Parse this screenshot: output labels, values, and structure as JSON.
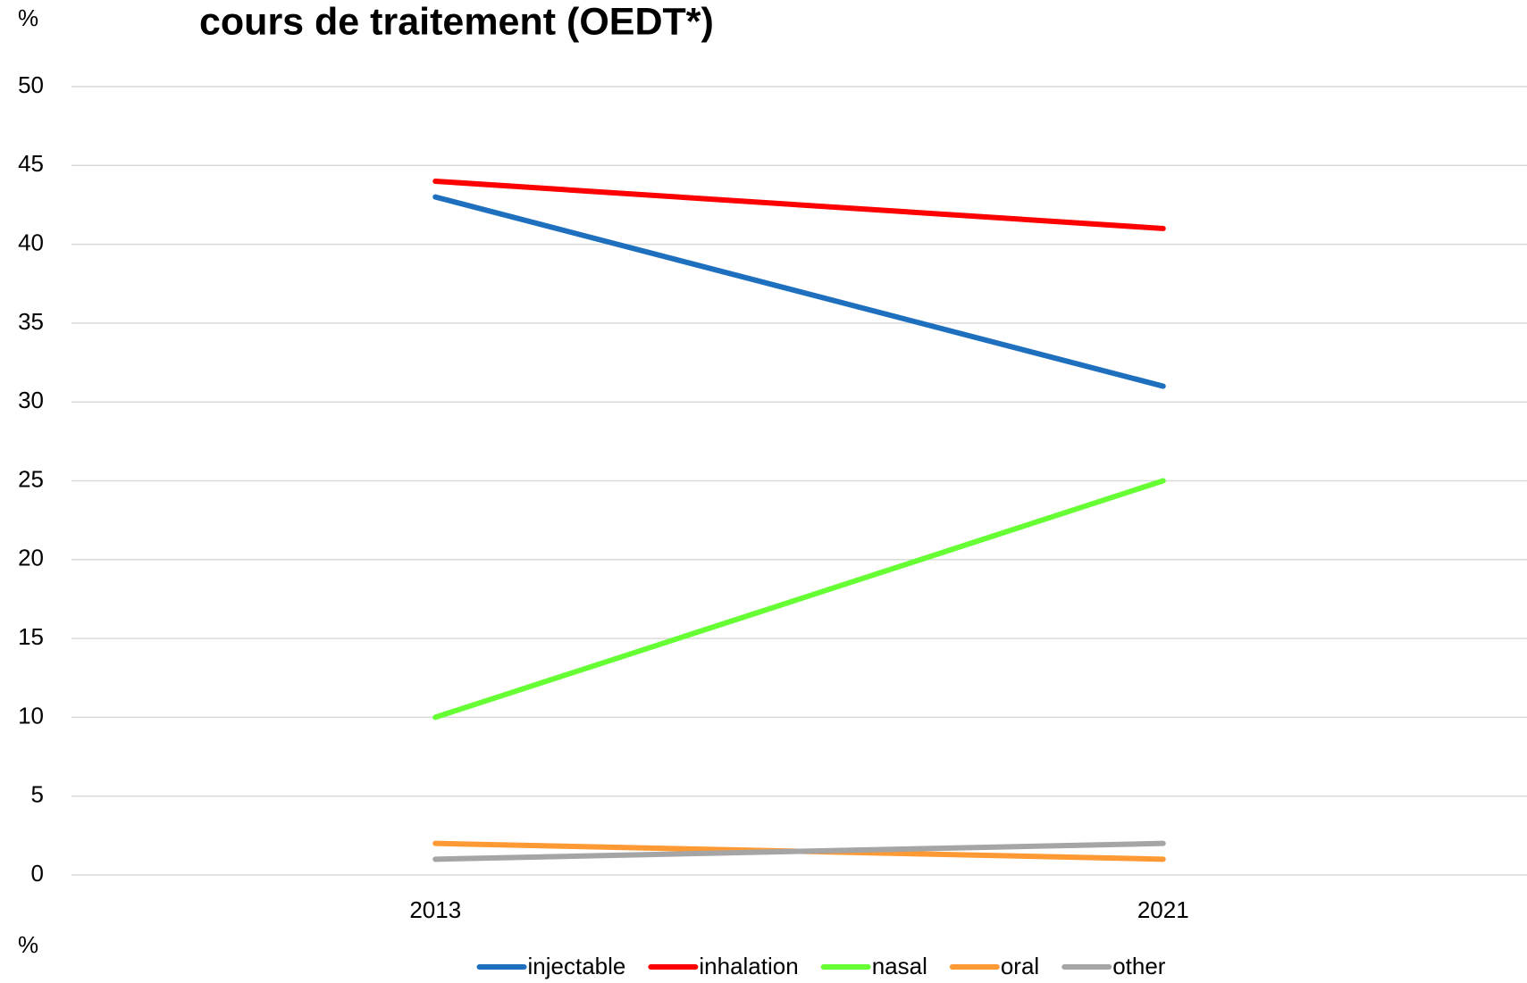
{
  "chart_data": {
    "type": "line",
    "title": "cours de traitement (OEDT*)",
    "y_unit_top": "%",
    "y_unit_bottom": "%",
    "categories": [
      "2013",
      "2021"
    ],
    "series": [
      {
        "name": "injectable",
        "color": "#1f6fbf",
        "values": [
          43,
          31
        ]
      },
      {
        "name": "inhalation",
        "color": "#ff0000",
        "values": [
          44,
          41
        ]
      },
      {
        "name": "nasal",
        "color": "#66ff33",
        "values": [
          10,
          25
        ]
      },
      {
        "name": "oral",
        "color": "#ff9933",
        "values": [
          2,
          1
        ]
      },
      {
        "name": "other",
        "color": "#a5a5a5",
        "values": [
          1,
          2
        ]
      }
    ],
    "ylim": [
      0,
      50
    ],
    "yticks": [
      0,
      5,
      10,
      15,
      20,
      25,
      30,
      35,
      40,
      45,
      50
    ],
    "grid": true,
    "legend": "bottom"
  }
}
